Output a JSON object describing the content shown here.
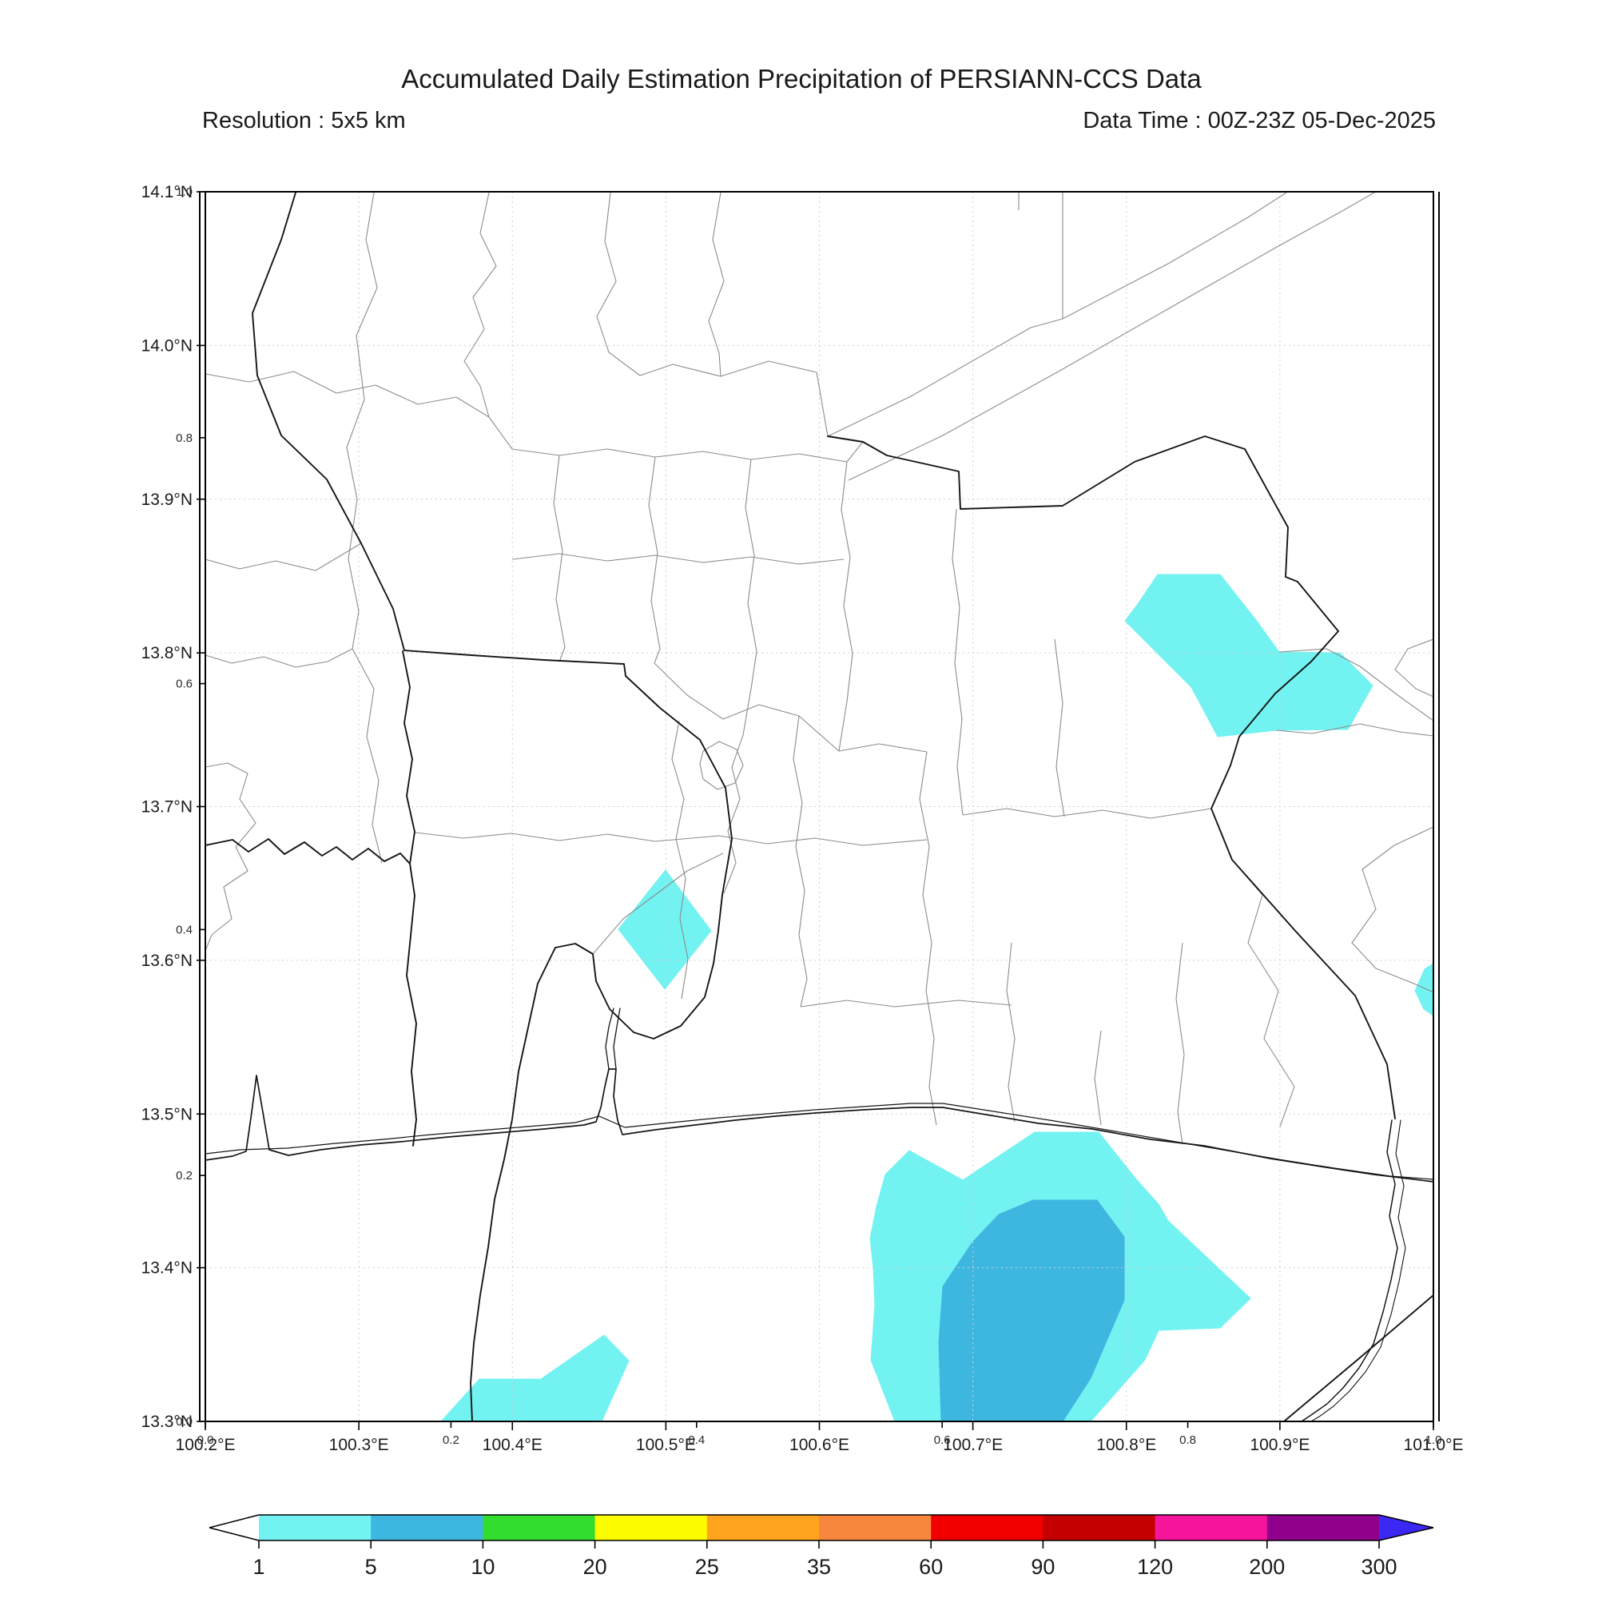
{
  "title": "Accumulated Daily Estimation Precipitation of PERSIANN-CCS Data",
  "subtitle_left": "Resolution : 5x5 km",
  "subtitle_right": "Data Time : 00Z-23Z 05-Dec-2025",
  "map": {
    "extent": {
      "lon_min": 100.2,
      "lon_max": 101.0,
      "lat_min": 13.3,
      "lat_max": 14.1
    },
    "lon_ticks": [
      {
        "label": "100.2°E",
        "f": 0.0
      },
      {
        "label": "100.3°E",
        "f": 0.125
      },
      {
        "label": "100.4°E",
        "f": 0.25
      },
      {
        "label": "100.5°E",
        "f": 0.375
      },
      {
        "label": "100.6°E",
        "f": 0.5
      },
      {
        "label": "100.7°E",
        "f": 0.625
      },
      {
        "label": "100.8°E",
        "f": 0.75
      },
      {
        "label": "100.9°E",
        "f": 0.875
      },
      {
        "label": "101.0°E",
        "f": 1.0
      }
    ],
    "lat_ticks": [
      {
        "label": "14.1°N",
        "f": 0.0
      },
      {
        "label": "14.0°N",
        "f": 0.125
      },
      {
        "label": "13.9°N",
        "f": 0.25
      },
      {
        "label": "13.8°N",
        "f": 0.375
      },
      {
        "label": "13.7°N",
        "f": 0.5
      },
      {
        "label": "13.6°N",
        "f": 0.625
      },
      {
        "label": "13.5°N",
        "f": 0.75
      },
      {
        "label": "13.4°N",
        "f": 0.875
      },
      {
        "label": "13.3°N",
        "f": 1.0
      }
    ],
    "lon_fraction_ticks": [
      {
        "label": "0.0",
        "f": 0.0
      },
      {
        "label": "0.2",
        "f": 0.2
      },
      {
        "label": "0.4",
        "f": 0.4
      },
      {
        "label": "0.6",
        "f": 0.6
      },
      {
        "label": "0.8",
        "f": 0.8
      },
      {
        "label": "1.0",
        "f": 1.0
      }
    ],
    "lat_fraction_ticks": [
      {
        "label": "1.0",
        "f": 0.0
      },
      {
        "label": "0.8",
        "f": 0.2
      },
      {
        "label": "0.6",
        "f": 0.4
      },
      {
        "label": "0.4",
        "f": 0.6
      },
      {
        "label": "0.2",
        "f": 0.8
      },
      {
        "label": "0.0",
        "f": 1.0
      }
    ]
  },
  "colorbar": {
    "values": [
      "1",
      "5",
      "10",
      "20",
      "25",
      "35",
      "60",
      "90",
      "120",
      "200",
      "300"
    ],
    "segment_colors": [
      "#73F2F2",
      "#3EB7E0",
      "#33DD30",
      "#FCFC00",
      "#FFA41C",
      "#F8873E",
      "#F20000",
      "#C40000",
      "#F5149B",
      "#8F008C"
    ],
    "under_color": "#FFFFFF",
    "over_color": "#3B28F5"
  },
  "precipitation": {
    "patches": [
      {
        "name": "northeast-light",
        "level_mm": "1-5",
        "color": "#73F2F2",
        "points": [
          [
            1449,
            719
          ],
          [
            1527,
            719
          ],
          [
            1572,
            776
          ],
          [
            1601,
            816
          ],
          [
            1677,
            817
          ],
          [
            1718,
            858
          ],
          [
            1687,
            913
          ],
          [
            1597,
            914
          ],
          [
            1524,
            922
          ],
          [
            1491,
            860
          ],
          [
            1408,
            777
          ],
          [
            1424,
            756
          ]
        ]
      },
      {
        "name": "central-diamond",
        "level_mm": "1-5",
        "color": "#73F2F2",
        "points": [
          [
            833,
            1089
          ],
          [
            890,
            1165
          ],
          [
            832,
            1238
          ],
          [
            774,
            1163
          ]
        ]
      },
      {
        "name": "east-edge",
        "level_mm": "1-5",
        "color": "#73F2F2",
        "points": [
          [
            1794,
            1206
          ],
          [
            1783,
            1213
          ],
          [
            1771,
            1240
          ],
          [
            1782,
            1263
          ],
          [
            1794,
            1271
          ]
        ]
      },
      {
        "name": "south-main-light",
        "level_mm": "1-5",
        "color": "#73F2F2",
        "points": [
          [
            1138,
            1440
          ],
          [
            1205,
            1477
          ],
          [
            1295,
            1417
          ],
          [
            1375,
            1417
          ],
          [
            1423,
            1477
          ],
          [
            1450,
            1507
          ],
          [
            1462,
            1528
          ],
          [
            1565,
            1625
          ],
          [
            1527,
            1662
          ],
          [
            1450,
            1665
          ],
          [
            1433,
            1702
          ],
          [
            1365,
            1779
          ],
          [
            1120,
            1779
          ],
          [
            1090,
            1702
          ],
          [
            1095,
            1633
          ],
          [
            1093,
            1587
          ],
          [
            1089,
            1550
          ],
          [
            1097,
            1510
          ],
          [
            1108,
            1470
          ]
        ]
      },
      {
        "name": "south-main-core",
        "level_mm": "5-10",
        "color": "#3EB7E0",
        "points": [
          [
            1293,
            1502
          ],
          [
            1373,
            1502
          ],
          [
            1407,
            1548
          ],
          [
            1407,
            1627
          ],
          [
            1365,
            1725
          ],
          [
            1330,
            1779
          ],
          [
            1178,
            1779
          ],
          [
            1175,
            1680
          ],
          [
            1180,
            1610
          ],
          [
            1217,
            1555
          ],
          [
            1250,
            1520
          ]
        ]
      },
      {
        "name": "southwest-light",
        "level_mm": "1-5",
        "color": "#73F2F2",
        "points": [
          [
            552,
            1779
          ],
          [
            600,
            1726
          ],
          [
            677,
            1726
          ],
          [
            756,
            1671
          ],
          [
            787,
            1703
          ],
          [
            753,
            1779
          ]
        ]
      }
    ]
  },
  "chart_data": {
    "type": "map-contour",
    "title": "Accumulated Daily Estimation Precipitation of PERSIANN-CCS Data",
    "extent": {
      "lon": [
        100.2,
        101.0
      ],
      "lat": [
        13.3,
        14.1
      ]
    },
    "colorbar_values": [
      1,
      5,
      10,
      20,
      25,
      35,
      60,
      90,
      120,
      200,
      300
    ],
    "regions": [
      {
        "area": "northeast patch approx 100.80-100.96E, 13.74-13.85N",
        "value_mm": "1-5"
      },
      {
        "area": "central diamond approx 100.50E, 13.62N",
        "value_mm": "1-5"
      },
      {
        "area": "east edge approx 101.0E, 13.58N",
        "value_mm": "1-5"
      },
      {
        "area": "southern patch approx 100.63-100.88E, 13.30-13.48N",
        "value_mm": "1-5"
      },
      {
        "area": "southern patch core approx 100.68-100.80E, 13.30-13.44N",
        "value_mm": "5-10"
      },
      {
        "area": "southwest patch approx 100.35-100.48E, 13.30-13.36N",
        "value_mm": "1-5"
      }
    ]
  }
}
